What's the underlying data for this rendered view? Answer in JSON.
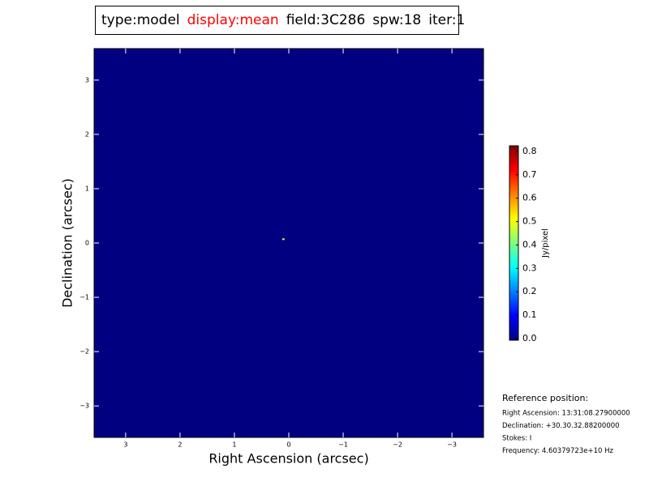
{
  "chart_data": {
    "type": "image",
    "title_segments": [
      {
        "text": "type:model",
        "color": "#000000"
      },
      {
        "text": "display:mean",
        "color": "#ff0000"
      },
      {
        "text": "field:3C286",
        "color": "#000000"
      },
      {
        "text": "spw:18",
        "color": "#000000"
      },
      {
        "text": "iter:1",
        "color": "#000000"
      }
    ],
    "x_label": "Right Ascension (arcsec)",
    "y_label": "Declination (arcsec)",
    "xlim": [
      3.58,
      -3.58
    ],
    "ylim": [
      -3.58,
      3.58
    ],
    "xticks": [
      3,
      2,
      1,
      0,
      {
        "value": -1,
        "label": "−1"
      },
      {
        "value": -2,
        "label": "−2"
      },
      {
        "value": -3,
        "label": "−3"
      }
    ],
    "yticks": [
      {
        "value": -3,
        "label": "−3"
      },
      {
        "value": -2,
        "label": "−2"
      },
      {
        "value": -1,
        "label": "−1"
      },
      0,
      1,
      2,
      3
    ],
    "background_color": "#000080",
    "colormap": "jet",
    "points": [
      {
        "x": 0.1,
        "y": 0.07,
        "value": 0.45
      }
    ],
    "colorbar_label": "Jy/pixel",
    "clim": [
      -0.007,
      0.824
    ],
    "colorbar_ticks": [
      {
        "value": 0,
        "label": "0.0"
      },
      0.1,
      0.2,
      0.3,
      0.4,
      0.5,
      0.6,
      0.7,
      0.8
    ],
    "reference": {
      "heading": "Reference position:",
      "lines": [
        "Right Ascension: 13:31:08.27900000",
        "Declination: +30.30.32.88200000",
        "Stokes: I",
        "Frequency: 4.60379723e+10 Hz"
      ]
    }
  }
}
